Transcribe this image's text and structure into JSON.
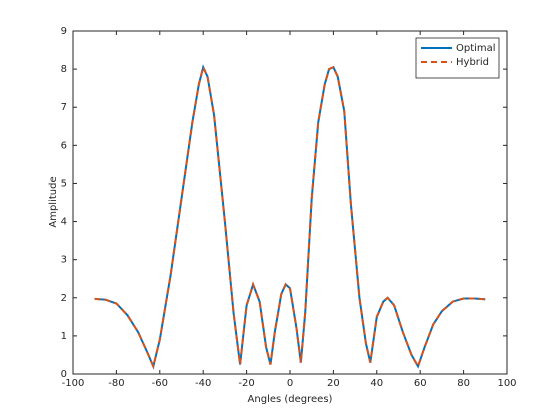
{
  "chart_data": {
    "type": "line",
    "xlabel": "Angles (degrees)",
    "ylabel": "Amplitude",
    "x": [
      -90,
      -85,
      -80,
      -75,
      -70,
      -66,
      -63,
      -60,
      -55,
      -50,
      -45,
      -42,
      -40,
      -38,
      -35,
      -30,
      -26,
      -23,
      -20,
      -17,
      -14,
      -11,
      -9,
      -7,
      -4,
      -2,
      0,
      3,
      5,
      7,
      10,
      13,
      16,
      18,
      20,
      22,
      25,
      28,
      32,
      35,
      37,
      40,
      43,
      45,
      48,
      52,
      56,
      59,
      62,
      66,
      70,
      75,
      80,
      85,
      90
    ],
    "series": [
      {
        "name": "Optimal",
        "color": "#0072bd",
        "dash": false,
        "values": [
          1.97,
          1.95,
          1.85,
          1.55,
          1.1,
          0.6,
          0.2,
          0.9,
          2.6,
          4.6,
          6.6,
          7.6,
          8.05,
          7.8,
          6.8,
          4.0,
          1.6,
          0.25,
          1.8,
          2.35,
          1.9,
          0.7,
          0.25,
          1.1,
          2.1,
          2.35,
          2.25,
          1.2,
          0.3,
          1.6,
          4.6,
          6.6,
          7.6,
          8.0,
          8.05,
          7.8,
          6.9,
          4.5,
          2.0,
          0.8,
          0.3,
          1.5,
          1.9,
          2.0,
          1.8,
          1.1,
          0.5,
          0.2,
          0.7,
          1.3,
          1.65,
          1.9,
          1.98,
          1.98,
          1.96
        ]
      },
      {
        "name": "Hybrid",
        "color": "#d95319",
        "dash": true,
        "values": [
          1.97,
          1.95,
          1.85,
          1.55,
          1.1,
          0.6,
          0.2,
          0.9,
          2.6,
          4.6,
          6.6,
          7.6,
          8.05,
          7.8,
          6.8,
          4.0,
          1.6,
          0.25,
          1.8,
          2.35,
          1.9,
          0.7,
          0.25,
          1.1,
          2.1,
          2.35,
          2.25,
          1.2,
          0.3,
          1.6,
          4.6,
          6.6,
          7.6,
          8.0,
          8.05,
          7.8,
          6.9,
          4.5,
          2.0,
          0.8,
          0.3,
          1.5,
          1.9,
          2.0,
          1.8,
          1.1,
          0.5,
          0.2,
          0.7,
          1.3,
          1.65,
          1.9,
          1.98,
          1.98,
          1.96
        ]
      }
    ],
    "xlim": [
      -100,
      100
    ],
    "xticks": [
      -100,
      -80,
      -60,
      -40,
      -20,
      0,
      20,
      40,
      60,
      80,
      100
    ],
    "ylim": [
      0,
      9
    ],
    "yticks": [
      0,
      1,
      2,
      3,
      4,
      5,
      6,
      7,
      8,
      9
    ],
    "grid": false,
    "legend": "northeast"
  }
}
